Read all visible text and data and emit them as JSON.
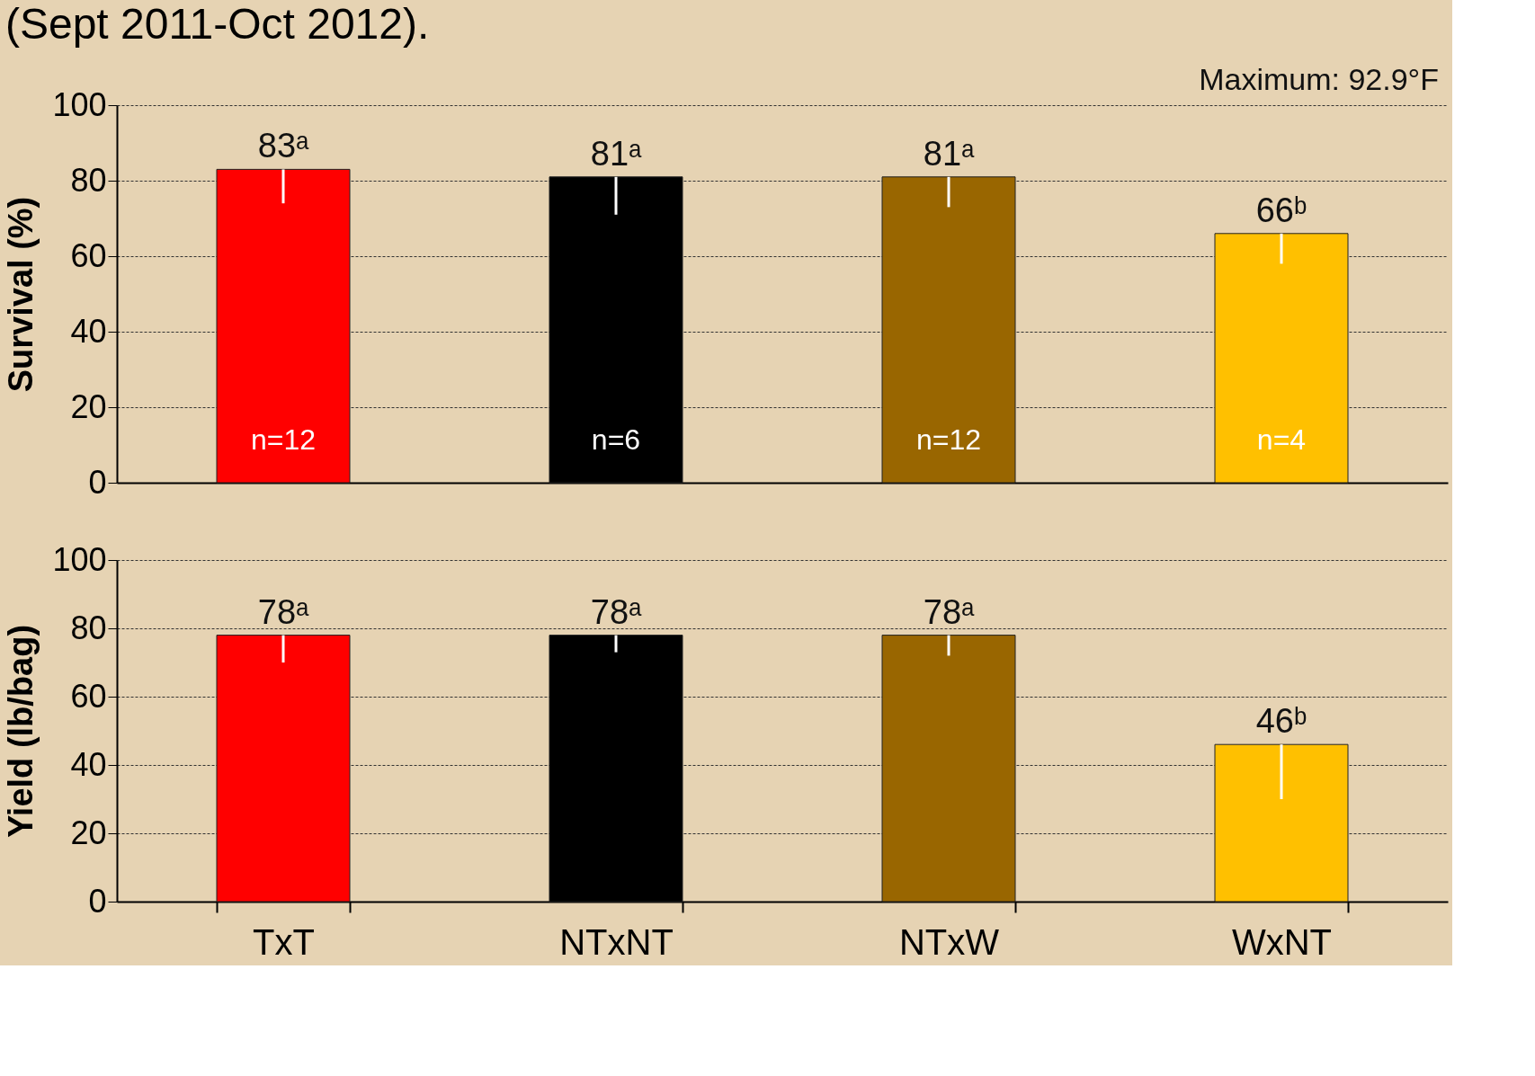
{
  "chart_data": [
    {
      "type": "bar",
      "title": "(Sept 2011-Oct 2012).",
      "ylabel": "Survival (%)",
      "categories": [
        null,
        null,
        null,
        null
      ],
      "colors": [
        "#ff0000",
        "#000000",
        "#996600",
        "#ffc000"
      ],
      "values": [
        83,
        81,
        81,
        66
      ],
      "value_labels": [
        "83ᵃ",
        "81ᵃ",
        "81ᵃ",
        "66ᵇ"
      ],
      "errors": [
        [
          74,
          83
        ],
        [
          71,
          81
        ],
        [
          73,
          81
        ],
        [
          58,
          66
        ]
      ],
      "ylim": [
        0,
        100
      ],
      "yticks": [
        0,
        20,
        40,
        60,
        80,
        100
      ],
      "grid": "y",
      "tick_labels": "y",
      "annotations": [
        "Maximum: 92.9°F",
        "n=12",
        "n=6",
        "n=12",
        "n=4"
      ]
    },
    {
      "type": "bar",
      "ylabel": "Yield (lb/bag)",
      "categories": [
        "TxT",
        "NTxNT",
        "NTxW",
        "WxNT"
      ],
      "colors": [
        "#ff0000",
        "#000000",
        "#996600",
        "#ffc000"
      ],
      "values": [
        78,
        78,
        78,
        46
      ],
      "value_labels": [
        "78ᵃ",
        "78ᵃ",
        "78ᵃ",
        "46ᵇ"
      ],
      "errors": [
        [
          70,
          78
        ],
        [
          73,
          78
        ],
        [
          72,
          78
        ],
        [
          30,
          46
        ]
      ],
      "ylim": [
        0,
        100
      ],
      "yticks": [
        0,
        20,
        40,
        60,
        80,
        100
      ],
      "grid": "y"
    }
  ]
}
